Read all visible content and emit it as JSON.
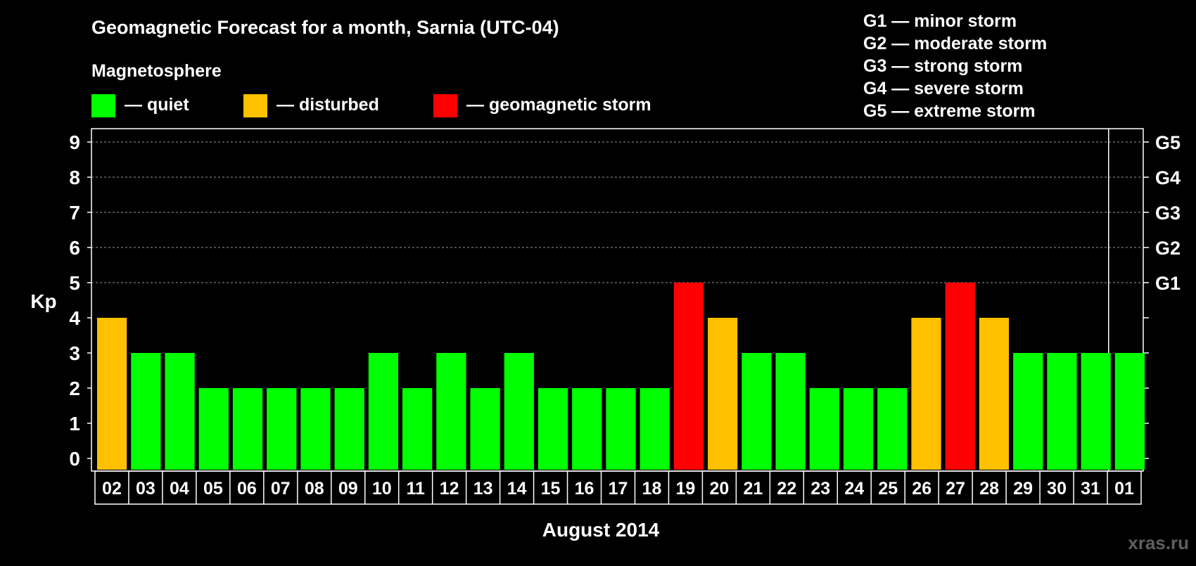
{
  "chart_data": {
    "type": "bar",
    "title": "Geomagnetic Forecast for a month, Sarnia (UTC-04)",
    "legend_title": "Magnetosphere",
    "legend": [
      {
        "key": "quiet",
        "label": "— quiet",
        "color": "#00ff00"
      },
      {
        "key": "disturbed",
        "label": "— disturbed",
        "color": "#ffc000"
      },
      {
        "key": "storm",
        "label": "— geomagnetic storm",
        "color": "#ff0000"
      }
    ],
    "storm_scale": [
      "G1 — minor storm",
      "G2 — moderate storm",
      "G3 — strong storm",
      "G4 — severe storm",
      "G5 — extreme storm"
    ],
    "ylabel": "Kp",
    "xlabel": "August 2014",
    "ylim": [
      0,
      9
    ],
    "yticks": [
      "0",
      "1",
      "2",
      "3",
      "4",
      "5",
      "6",
      "7",
      "8",
      "9"
    ],
    "right_ticks": [
      {
        "kp": 5,
        "label": "G1"
      },
      {
        "kp": 6,
        "label": "G2"
      },
      {
        "kp": 7,
        "label": "G3"
      },
      {
        "kp": 8,
        "label": "G4"
      },
      {
        "kp": 9,
        "label": "G5"
      }
    ],
    "categories": [
      "02",
      "03",
      "04",
      "05",
      "06",
      "07",
      "08",
      "09",
      "10",
      "11",
      "12",
      "13",
      "14",
      "15",
      "16",
      "17",
      "18",
      "19",
      "20",
      "21",
      "22",
      "23",
      "24",
      "25",
      "26",
      "27",
      "28",
      "29",
      "30",
      "31",
      "01"
    ],
    "values": [
      4,
      3,
      3,
      2,
      2,
      2,
      2,
      2,
      3,
      2,
      3,
      2,
      3,
      2,
      2,
      2,
      2,
      5,
      4,
      3,
      3,
      2,
      2,
      2,
      4,
      5,
      4,
      3,
      3,
      3,
      3
    ],
    "month_divider_after": "31",
    "grid": true
  },
  "watermark": "xras.ru"
}
